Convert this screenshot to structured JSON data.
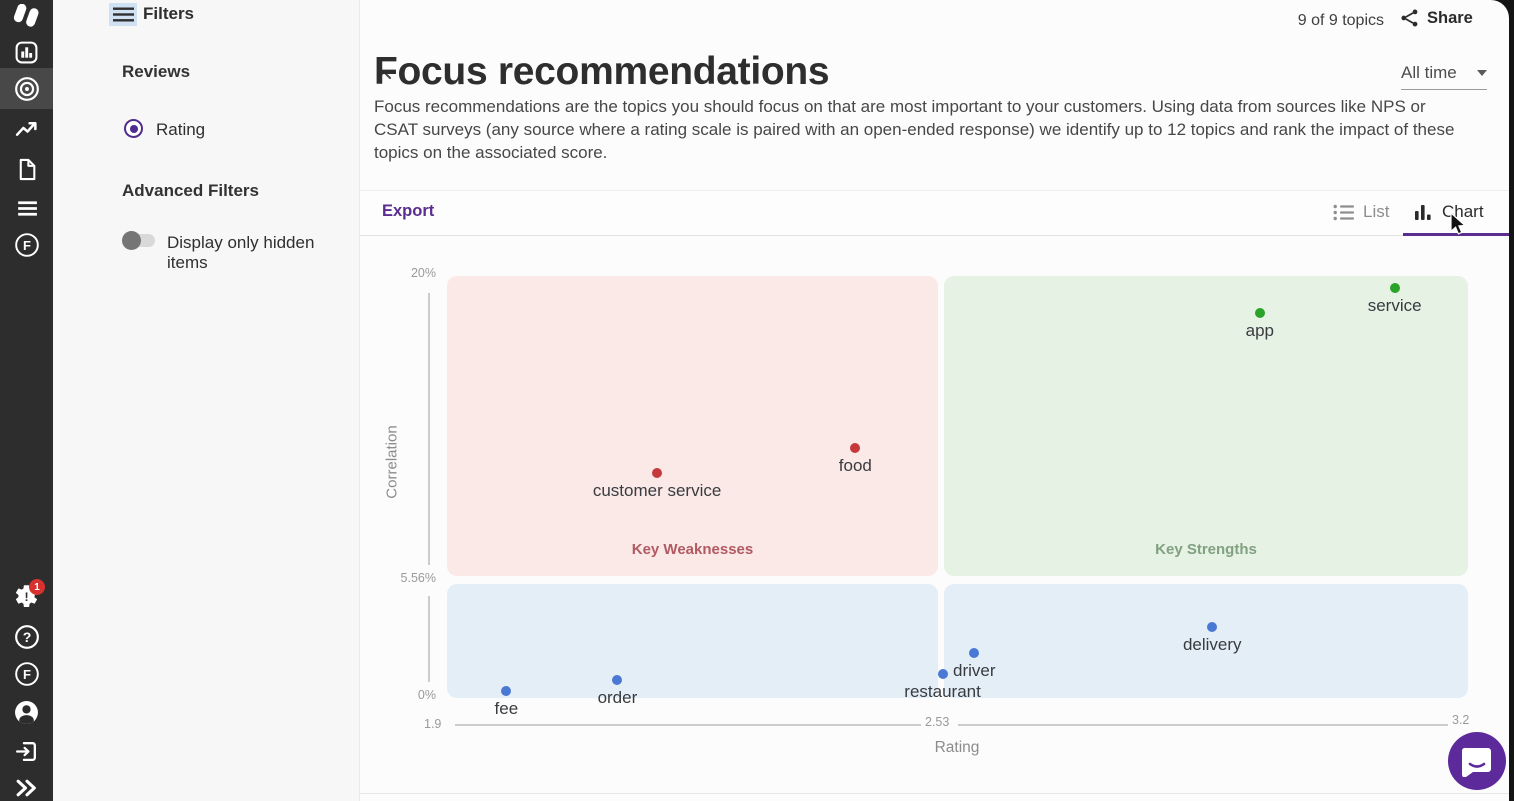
{
  "app": {
    "badge_count": "1"
  },
  "filters": {
    "title": "Filters",
    "reviews_section": "Reviews",
    "rating_label": "Rating",
    "advanced_section": "Advanced Filters",
    "hidden_toggle_label": "Display only hidden items"
  },
  "header": {
    "topics_count": "9 of 9 topics",
    "share_label": "Share",
    "time_filter": "All time",
    "title": "Focus recommendations",
    "description": "Focus recommendations are the topics you should focus on that are most important to your customers. Using data from sources like NPS or CSAT surveys (any source where a rating scale is paired with an open-ended response) we identify up to 12 topics and rank the impact of these topics on the associated score."
  },
  "toolbar": {
    "export_label": "Export",
    "list_tab": "List",
    "chart_tab": "Chart"
  },
  "chart_data": {
    "type": "scatter",
    "xlabel": "Rating",
    "ylabel": "Correlation",
    "xlim": [
      1.9,
      3.2
    ],
    "ylim": [
      0,
      20
    ],
    "x_ticks": [
      "1.9",
      "2.53",
      "3.2"
    ],
    "y_ticks": [
      "20%",
      "5.56%",
      "0%"
    ],
    "grid": false,
    "legend": "none",
    "quadrants": [
      {
        "position": "top-left",
        "label": "Key Weaknesses",
        "bg": "#fbe9e8",
        "label_color": "#b25a62"
      },
      {
        "position": "top-right",
        "label": "Key Strengths",
        "bg": "#e5f2e4",
        "label_color": "#81a181"
      },
      {
        "position": "bottom-left",
        "label": "",
        "bg": "#e4eef7",
        "label_color": ""
      },
      {
        "position": "bottom-right",
        "label": "",
        "bg": "#e4eef7",
        "label_color": ""
      }
    ],
    "points": [
      {
        "label": "service",
        "x": 3.11,
        "y": 19.3,
        "color": "#2aa32a",
        "group": "strength"
      },
      {
        "label": "app",
        "x": 2.94,
        "y": 18.1,
        "color": "#2aa32a",
        "group": "strength"
      },
      {
        "label": "food",
        "x": 2.43,
        "y": 11.7,
        "color": "#c5393c",
        "group": "weakness"
      },
      {
        "label": "customer service",
        "x": 2.18,
        "y": 10.5,
        "color": "#c5393c",
        "group": "weakness"
      },
      {
        "label": "delivery",
        "x": 2.88,
        "y": 3.2,
        "color": "#4a78d5",
        "group": "neutral"
      },
      {
        "label": "driver",
        "x": 2.58,
        "y": 2.0,
        "color": "#4a78d5",
        "group": "neutral"
      },
      {
        "label": "restaurant",
        "x": 2.54,
        "y": 1.0,
        "color": "#4a78d5",
        "group": "neutral"
      },
      {
        "label": "order",
        "x": 2.13,
        "y": 0.7,
        "color": "#4a78d5",
        "group": "neutral"
      },
      {
        "label": "fee",
        "x": 1.99,
        "y": 0.2,
        "color": "#4a78d5",
        "group": "neutral"
      }
    ]
  },
  "colors": {
    "accent_purple": "#5b2d90",
    "sidebar_bg": "#2d2d2d",
    "badge_red": "#d63230"
  }
}
